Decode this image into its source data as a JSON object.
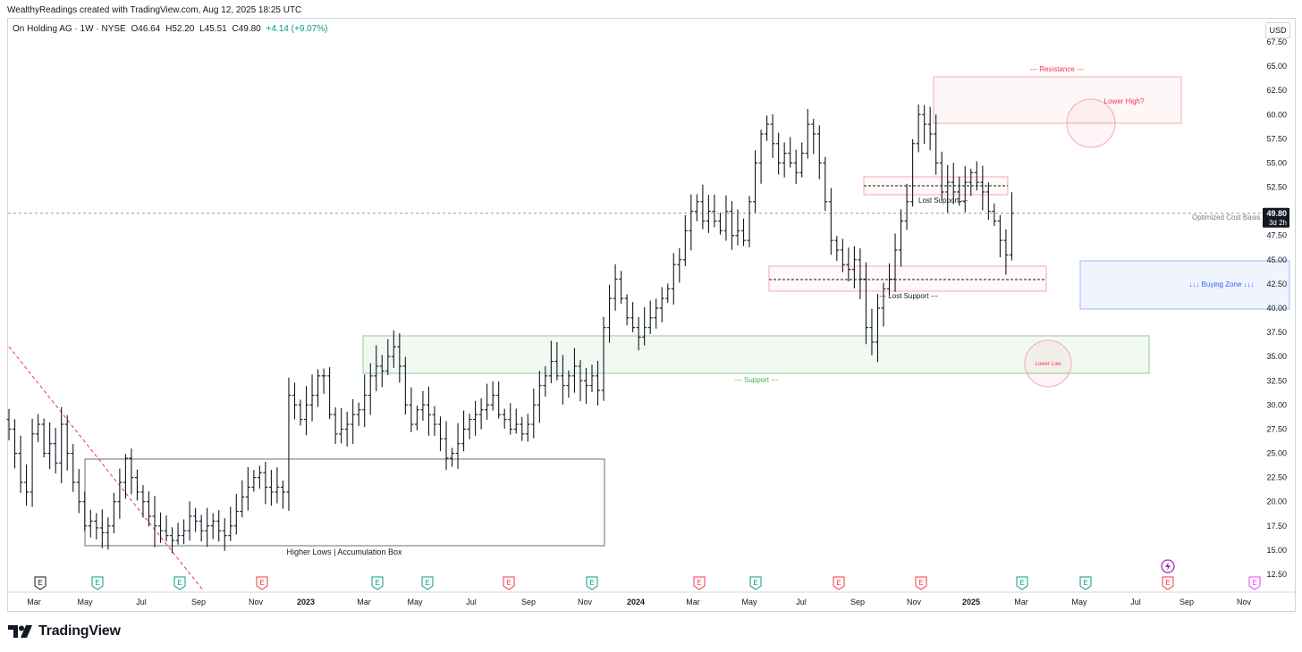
{
  "header": {
    "attribution": "WealthyReadings created with TradingView.com, Aug 12, 2025 18:25 UTC"
  },
  "legend": {
    "symbol": "On Holding AG · 1W · NYSE",
    "open": "O46.64",
    "high": "H52.20",
    "low": "L45.51",
    "close": "C49.80",
    "change": "+4.14 (+9.07%)"
  },
  "currency_label": "USD",
  "price_label": {
    "value": "49.80",
    "countdown": "3d 2h"
  },
  "brand": {
    "name": "TradingView"
  },
  "colors": {
    "candle": "#131722",
    "resistance": "#f23645",
    "support": "#4caf50",
    "buy_zone": "#2962ff",
    "earnings_red": "#f23645",
    "earnings_green": "#089981"
  },
  "annotations": {
    "resistance": "--- Resistance ---",
    "lower_high": "Lower High?",
    "lost_support_1": "Lost Support ---",
    "lost_support_2": "--- Lost Support ---",
    "optimized_cost_basis": "Optimized Cost Basis",
    "buying_zone": "↓↓↓ Buying Zone ↓↓↓",
    "support": "--- Support ---",
    "lower_low": "Lower Low",
    "accumulation_box": "Higher Lows | Accumulation Box"
  },
  "earnings_markers": [
    {
      "label": "E",
      "type": "past"
    },
    {
      "label": "E",
      "type": "beat"
    },
    {
      "label": "E",
      "type": "beat"
    },
    {
      "label": "E",
      "type": "miss"
    },
    {
      "label": "E",
      "type": "beat"
    },
    {
      "label": "E",
      "type": "beat"
    },
    {
      "label": "E",
      "type": "miss"
    },
    {
      "label": "E",
      "type": "beat"
    },
    {
      "label": "E",
      "type": "miss"
    },
    {
      "label": "E",
      "type": "beat"
    },
    {
      "label": "E",
      "type": "miss"
    },
    {
      "label": "E",
      "type": "miss"
    },
    {
      "label": "E",
      "type": "beat"
    },
    {
      "label": "E",
      "type": "beat"
    },
    {
      "label": "E",
      "type": "miss"
    },
    {
      "label": "E",
      "type": "future"
    }
  ],
  "chart_data": {
    "type": "ohlc-bar",
    "title": "On Holding AG · 1W · NYSE",
    "ylim": [
      11,
      68.5
    ],
    "y_ticks": [
      12.5,
      15,
      17.5,
      20,
      22.5,
      25,
      27.5,
      30,
      32.5,
      35,
      37.5,
      40,
      42.5,
      45,
      47.5,
      50,
      52.5,
      55,
      57.5,
      60,
      62.5,
      65,
      67.5
    ],
    "x_ticks": [
      "Mar",
      "May",
      "Jul",
      "Sep",
      "Nov",
      "2023",
      "Mar",
      "May",
      "Jul",
      "Sep",
      "Nov",
      "2024",
      "Mar",
      "May",
      "Jul",
      "Sep",
      "Nov",
      "2025",
      "Mar",
      "May",
      "Jul",
      "Sep",
      "Nov"
    ],
    "grid": false,
    "last_close": 49.8,
    "closes": [
      27.5,
      25,
      22,
      21,
      27,
      28,
      25,
      26,
      24,
      28,
      25,
      22,
      20,
      17.5,
      18,
      17.3,
      16.8,
      17.5,
      20,
      22,
      24.5,
      22.5,
      21,
      20,
      18.5,
      17.5,
      17,
      16.5,
      16,
      16.5,
      17,
      18.5,
      18,
      17,
      17.5,
      18,
      17,
      16.5,
      17.5,
      19,
      20.5,
      21.5,
      22.5,
      23,
      21.5,
      21,
      21.5,
      21,
      31,
      30,
      28.5,
      30,
      31,
      33,
      33,
      29,
      27,
      27.5,
      28,
      29,
      29.5,
      31,
      33,
      34,
      33.5,
      35,
      36,
      34,
      30,
      28,
      29.5,
      30,
      29,
      28,
      26.5,
      24.5,
      25,
      26,
      27.5,
      28.5,
      29,
      29.5,
      30,
      31,
      29,
      28.5,
      27.5,
      28,
      27,
      28,
      30,
      32,
      33,
      34.5,
      33,
      32,
      33,
      34,
      32.5,
      32,
      33,
      31.5,
      38,
      41,
      43,
      41,
      39,
      38,
      37,
      38,
      39,
      40,
      41,
      42,
      44.5,
      45,
      48,
      50,
      51,
      49,
      50,
      49,
      48,
      50,
      47.5,
      48,
      47,
      51,
      55,
      58,
      59,
      57,
      55,
      56,
      55,
      54,
      56,
      59,
      58,
      55,
      51,
      47,
      46,
      44.5,
      44,
      45,
      43,
      38,
      36.5,
      40,
      42,
      43,
      46,
      49,
      51,
      57,
      60,
      59,
      58,
      55,
      52,
      53,
      52,
      51,
      53,
      54,
      53,
      52,
      50,
      49,
      47,
      45.5,
      49.8
    ],
    "series": [
      {
        "name": "On Holding AG · 1W · NYSE",
        "values": "closes"
      }
    ]
  }
}
